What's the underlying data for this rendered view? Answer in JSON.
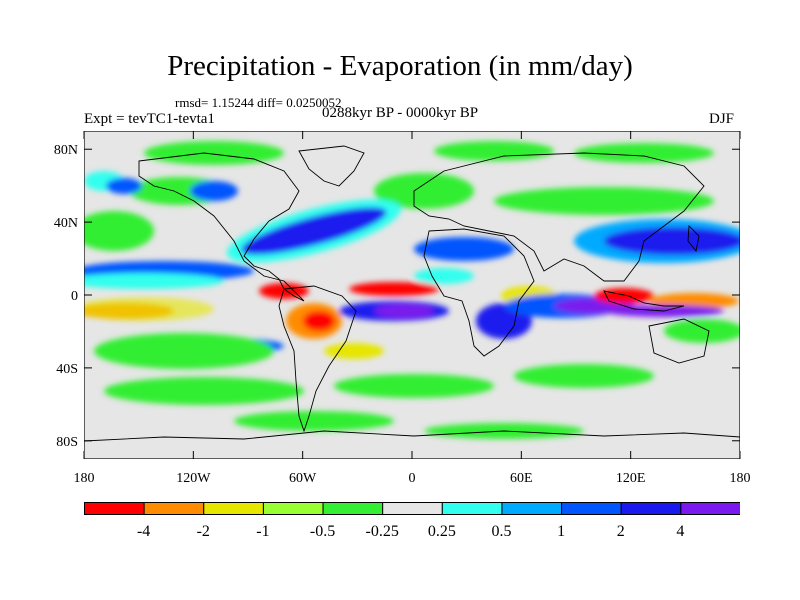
{
  "title": "Precipitation - Evaporation (in mm/day)",
  "stats": "rmsd= 1.15244 diff= 0.0250052",
  "period": "0288kyr BP - 0000kyr BP",
  "experiment": "Expt = tevTC1-tevta1",
  "season": "DJF",
  "lat_ticks": [
    {
      "value": 80,
      "label": "80N"
    },
    {
      "value": 40,
      "label": "40N"
    },
    {
      "value": 0,
      "label": "0"
    },
    {
      "value": -40,
      "label": "40S"
    },
    {
      "value": -80,
      "label": "80S"
    }
  ],
  "lon_ticks": [
    {
      "value": -180,
      "label": "180"
    },
    {
      "value": -120,
      "label": "120W"
    },
    {
      "value": -60,
      "label": "60W"
    },
    {
      "value": 0,
      "label": "0"
    },
    {
      "value": 60,
      "label": "60E"
    },
    {
      "value": 120,
      "label": "120E"
    },
    {
      "value": 180,
      "label": "180"
    }
  ],
  "colorbar": {
    "colors": [
      "#ff0000",
      "#ff8c00",
      "#e6e600",
      "#99ff33",
      "#33ee33",
      "#e6e6e6",
      "#33ffee",
      "#00aaff",
      "#0055ff",
      "#1a1aee",
      "#7a1aee"
    ],
    "labels": [
      "-4",
      "-2",
      "-1",
      "-0.5",
      "-0.25",
      "0.25",
      "0.5",
      "1",
      "2",
      "4"
    ]
  },
  "colors": {
    "land": "#e6e6e6",
    "coast": "#000000"
  }
}
